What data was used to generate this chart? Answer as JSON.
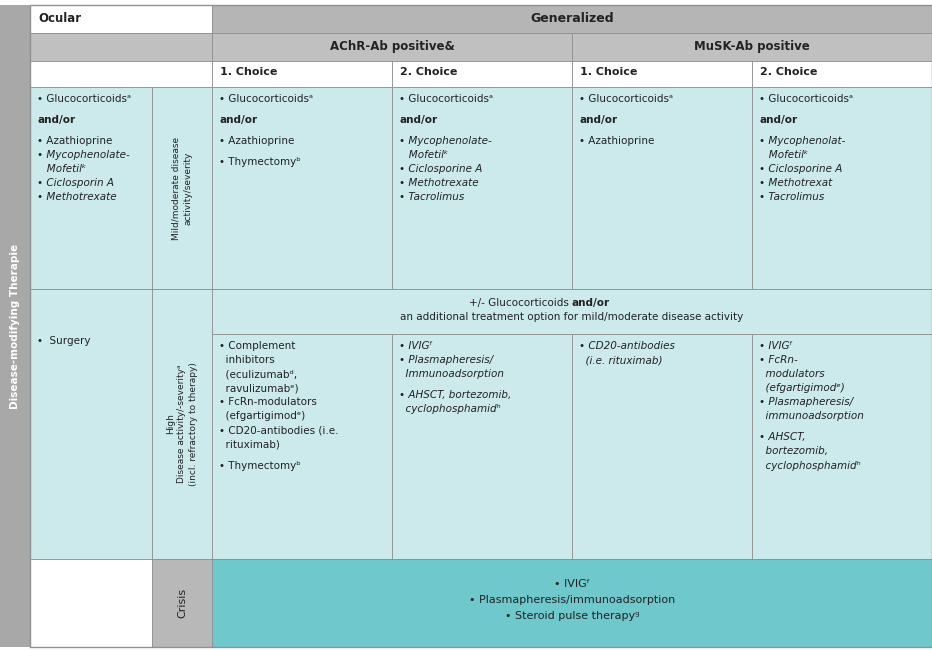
{
  "bg_color": "#ffffff",
  "gray_header": "#b5b5b5",
  "gray_subheader": "#c0c0c0",
  "gray_side": "#a8a8a8",
  "gray_crisis_label": "#b8b8b8",
  "teal_light": "#cce9eb",
  "teal_crisis": "#6ec8cc",
  "white": "#ffffff",
  "border_color": "#909090",
  "left_label": "Disease-modifying Therapie",
  "col0_header": "Ocular",
  "col_generalized": "Generalized",
  "col_achr": "AChR-Ab positive&",
  "col_musk": "MuSK-Ab positive",
  "row_mild_label": "Mild/moderate disease\nactivity/severity",
  "row_high_label": "High\nDisease activity/-severityᵃ\n(incl. refractory to therapy)",
  "row_crisis_label": "Crisis",
  "choice_labels": [
    "1. Choice",
    "2. Choice",
    "1. Choice",
    "2. Choice"
  ],
  "high_note_text": "+/- Glucocorticoids and/or\nan additional treatment option for mild/moderate disease activity",
  "ocular_mild_text": "• Glucocorticoidsᵃ\n\nand/or\n\n• Azathioprine\n• Mycophenolate-\n   Mofetilᵏ\n• Ciclosporin A\n• Methotrexate",
  "ocular_high_text": "•  Surgery",
  "achr_mild_1_text": "• Glucocorticoidsᵃ\n\nand/or\n\n• Azathioprine\n\n• Thymectomyᵇ",
  "achr_mild_2_text": "• Glucocorticoidsᵃ\n\nand/or\n\n• Mycophenolate-\n   Mofetilᵏ\n• Ciclosporine A\n• Methotrexate\n• Tacrolimus",
  "musk_mild_1_text": "• Glucocorticoidsᵃ\n\nand/or\n\n• Azathioprine",
  "musk_mild_2_text": "• Glucocorticoidsᵃ\n\nand/or\n\n• Mycophenolat-\n   Mofetilᵏ\n• Ciclosporine A\n• Methotrexat\n• Tacrolimus",
  "achr_high_1_text": "• Complement\n  inhibitors\n  (eculizumabᵈ,\n  ravulizumabᵉ)\n• FcRn-modulators\n  (efgartigimodᵉ)\n• CD20-antibodies (i.e.\n  rituximab)\n\n• Thymectomyᵇ",
  "achr_high_2_text": "• IVIGᶠ\n• Plasmapheresis/\n  Immunoadsorption\n\n• AHSCT, bortezomib,\n  cyclophosphamidʰ",
  "musk_high_1_text": "• CD20-antibodies\n  (i.e. rituximab)",
  "musk_high_2_text": "• IVIGᶠ\n• FcRn-\n  modulators\n  (efgartigimodᵉ)\n• Plasmapheresis/\n  immunoadsorption\n\n• AHSCT,\n  bortezomib,\n  cyclophosphamidʰ",
  "crisis_text": "• IVIGᶠ\n• Plasmapheresis/immunoadsorption\n• Steroid pulse therapyᵍ"
}
